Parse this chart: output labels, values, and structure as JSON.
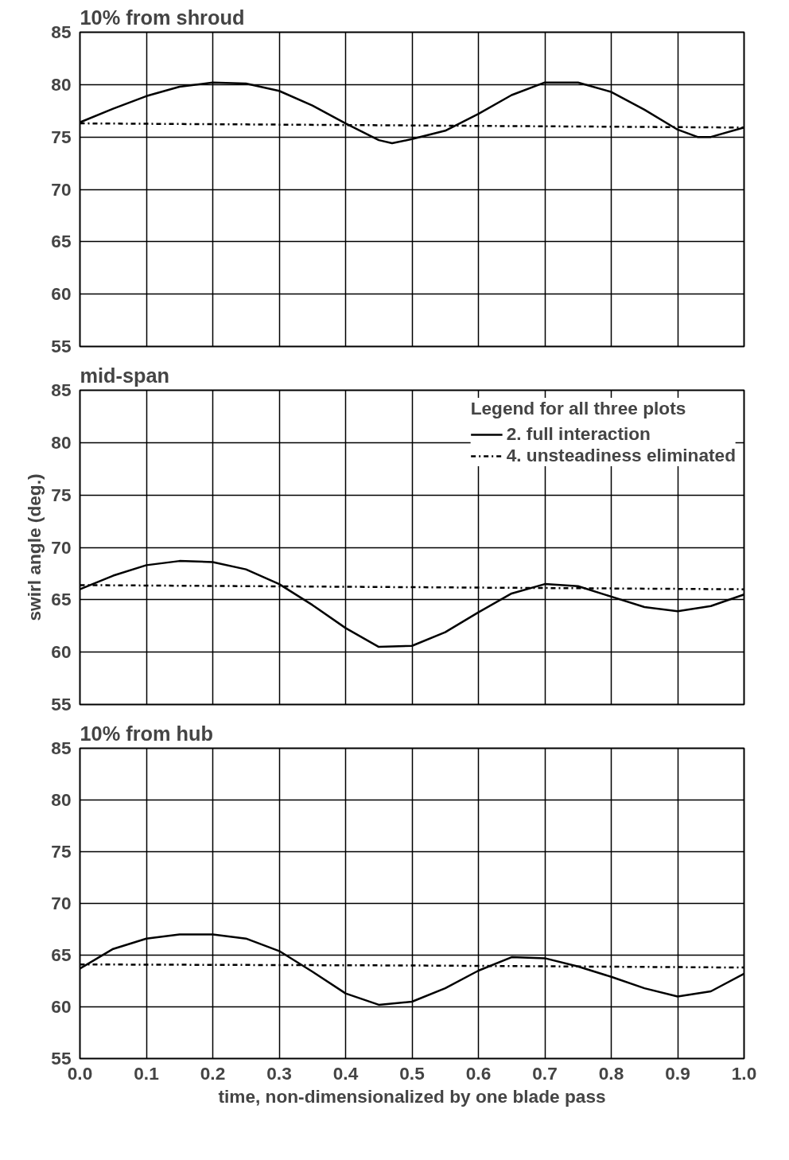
{
  "chart_data": [
    {
      "type": "line",
      "title": "10% from shroud",
      "x": [
        0,
        0.05,
        0.1,
        0.15,
        0.2,
        0.25,
        0.3,
        0.35,
        0.4,
        0.45,
        0.47,
        0.5,
        0.55,
        0.6,
        0.65,
        0.7,
        0.75,
        0.8,
        0.85,
        0.9,
        0.93,
        0.95,
        1.0
      ],
      "xlim": [
        0,
        1
      ],
      "xticks": [
        0,
        0.1,
        0.2,
        0.3,
        0.4,
        0.5,
        0.6,
        0.7,
        0.8,
        0.9,
        1
      ],
      "ylim": [
        55,
        85
      ],
      "yticks": [
        55,
        60,
        65,
        70,
        75,
        80,
        85
      ],
      "grid": true,
      "tick_labels": "y",
      "series": [
        {
          "color": "#000000",
          "line_style": "solid",
          "values": [
            76.4,
            77.7,
            78.9,
            79.8,
            80.2,
            80.1,
            79.4,
            78.0,
            76.3,
            74.7,
            74.4,
            74.8,
            75.6,
            77.2,
            79.0,
            80.2,
            80.2,
            79.3,
            77.6,
            75.7,
            75.0,
            75.0,
            75.9
          ]
        },
        {
          "color": "#000000",
          "line_style": "dashdot",
          "x": [
            0,
            0.5,
            1
          ],
          "values": [
            76.3,
            76.1,
            75.9
          ]
        }
      ]
    },
    {
      "type": "line",
      "title": "mid-span",
      "ylabel": "swirl angle (deg.)",
      "legend_title": "Legend for all three plots",
      "legend": "top right",
      "x": [
        0,
        0.05,
        0.1,
        0.15,
        0.2,
        0.25,
        0.3,
        0.35,
        0.4,
        0.45,
        0.5,
        0.55,
        0.6,
        0.65,
        0.7,
        0.75,
        0.8,
        0.85,
        0.9,
        0.95,
        1.0
      ],
      "xlim": [
        0,
        1
      ],
      "xticks": [
        0,
        0.1,
        0.2,
        0.3,
        0.4,
        0.5,
        0.6,
        0.7,
        0.8,
        0.9,
        1
      ],
      "ylim": [
        55,
        85
      ],
      "yticks": [
        55,
        60,
        65,
        70,
        75,
        80,
        85
      ],
      "grid": true,
      "tick_labels": "y",
      "series": [
        {
          "name": "2. full interaction",
          "color": "#000000",
          "line_style": "solid",
          "values": [
            66.0,
            67.3,
            68.3,
            68.7,
            68.6,
            67.9,
            66.5,
            64.5,
            62.3,
            60.5,
            60.6,
            61.9,
            63.8,
            65.6,
            66.5,
            66.3,
            65.3,
            64.3,
            63.9,
            64.4,
            65.5
          ]
        },
        {
          "name": "4. unsteadiness eliminated",
          "color": "#000000",
          "line_style": "dashdot",
          "x": [
            0,
            0.5,
            1
          ],
          "values": [
            66.4,
            66.2,
            66.0
          ]
        }
      ]
    },
    {
      "type": "line",
      "title": "10% from hub",
      "xlabel": "time, non-dimensionalized by one blade pass",
      "x": [
        0,
        0.05,
        0.1,
        0.15,
        0.2,
        0.25,
        0.3,
        0.35,
        0.4,
        0.45,
        0.5,
        0.55,
        0.6,
        0.65,
        0.7,
        0.75,
        0.8,
        0.85,
        0.9,
        0.95,
        1.0
      ],
      "xlim": [
        0,
        1
      ],
      "xticks": [
        {
          "value": 0,
          "label": "0.0"
        },
        0.1,
        0.2,
        0.3,
        0.4,
        0.5,
        0.6,
        0.7,
        0.8,
        0.9,
        {
          "value": 1,
          "label": "1.0"
        }
      ],
      "ylim": [
        55,
        85
      ],
      "yticks": [
        55,
        60,
        65,
        70,
        75,
        80,
        85
      ],
      "grid": true,
      "series": [
        {
          "color": "#000000",
          "line_style": "solid",
          "values": [
            63.7,
            65.6,
            66.6,
            67.0,
            67.0,
            66.6,
            65.4,
            63.4,
            61.3,
            60.2,
            60.5,
            61.8,
            63.5,
            64.8,
            64.7,
            63.9,
            62.9,
            61.8,
            61.0,
            61.5,
            63.2
          ]
        },
        {
          "color": "#000000",
          "line_style": "dashdot",
          "x": [
            0,
            0.5,
            1
          ],
          "values": [
            64.1,
            64.0,
            63.8
          ]
        }
      ]
    }
  ]
}
